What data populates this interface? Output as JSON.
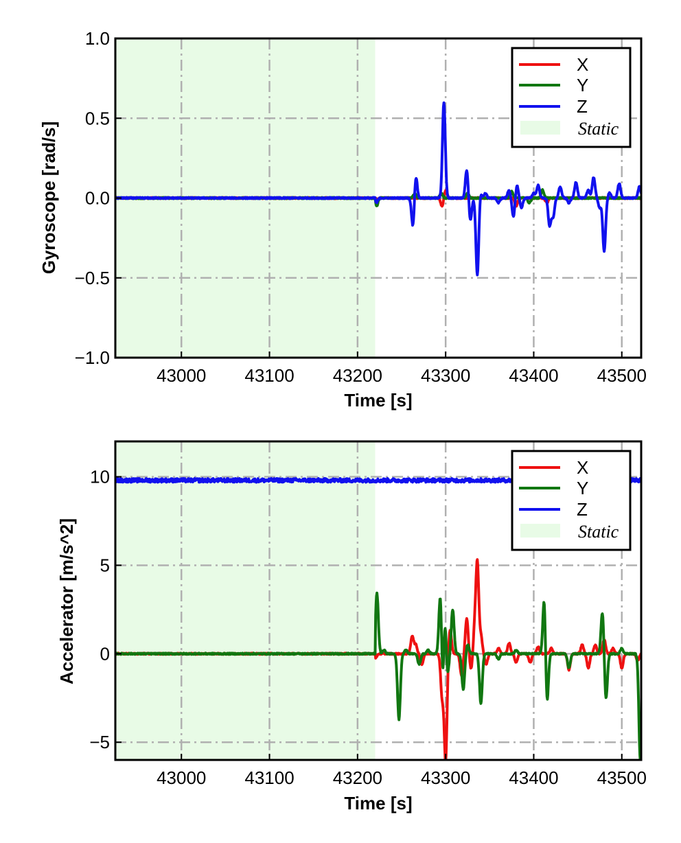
{
  "colors": {
    "X": "#ee1111",
    "Y": "#117711",
    "Z": "#1111ee",
    "static": "#e8fbe6"
  },
  "chart_data": [
    {
      "type": "line",
      "xlabel": "Time [s]",
      "ylabel": "Gyroscope [rad/s]",
      "xlim": [
        42925,
        43522
      ],
      "ylim": [
        -1.0,
        1.0
      ],
      "xticks": [
        43000,
        43100,
        43200,
        43300,
        43400,
        43500
      ],
      "yticks": [
        -1.0,
        -0.5,
        0.0,
        0.5,
        1.0
      ],
      "ytick_labels": [
        "−1.0",
        "−0.5",
        "0.0",
        "0.5",
        "1.0"
      ],
      "grid": true,
      "legend": "top-right",
      "static_region": {
        "label": "Static",
        "x": [
          42925,
          43220
        ]
      },
      "series": [
        {
          "name": "X",
          "color": "#ee1111",
          "baseline": 0.0,
          "events": [
            [
              43220,
              0.04
            ],
            [
              43221,
              -0.04
            ],
            [
              43296,
              -0.05
            ],
            [
              43300,
              0.05
            ],
            [
              43380,
              -0.05
            ],
            [
              43415,
              -0.03
            ]
          ]
        },
        {
          "name": "Y",
          "color": "#117711",
          "baseline": 0.0,
          "events": [
            [
              43219,
              0.08
            ],
            [
              43221,
              -0.08
            ],
            [
              43265,
              0.03
            ],
            [
              43295,
              0.03
            ],
            [
              43325,
              0.03
            ],
            [
              43375,
              0.04
            ],
            [
              43395,
              -0.03
            ],
            [
              43410,
              0.05
            ]
          ]
        },
        {
          "name": "Z",
          "color": "#1111ee",
          "baseline": 0.0,
          "events": [
            [
              43219,
              0.03
            ],
            [
              43221,
              -0.04
            ],
            [
              43263,
              -0.19
            ],
            [
              43266,
              0.15
            ],
            [
              43298,
              0.6
            ],
            [
              43324,
              0.18
            ],
            [
              43328,
              -0.14
            ],
            [
              43336,
              -0.49
            ],
            [
              43339,
              0.04
            ],
            [
              43345,
              0.03
            ],
            [
              43360,
              -0.03
            ],
            [
              43372,
              0.05
            ],
            [
              43377,
              -0.12
            ],
            [
              43381,
              0.08
            ],
            [
              43386,
              -0.06
            ],
            [
              43400,
              0.03
            ],
            [
              43405,
              0.08
            ],
            [
              43418,
              -0.17
            ],
            [
              43422,
              -0.12
            ],
            [
              43430,
              0.07
            ],
            [
              43440,
              -0.03
            ],
            [
              43448,
              0.1
            ],
            [
              43462,
              0.05
            ],
            [
              43468,
              0.13
            ],
            [
              43475,
              -0.06
            ],
            [
              43480,
              -0.33
            ],
            [
              43486,
              0.03
            ],
            [
              43497,
              0.09
            ],
            [
              43520,
              0.07
            ]
          ]
        }
      ]
    },
    {
      "type": "line",
      "xlabel": "Time [s]",
      "ylabel": "Accelerator [m/s^2]",
      "xlim": [
        42925,
        43522
      ],
      "ylim": [
        -6.0,
        12.0
      ],
      "xticks": [
        43000,
        43100,
        43200,
        43300,
        43400,
        43500
      ],
      "yticks": [
        -5,
        0,
        5,
        10
      ],
      "ytick_labels": [
        "−5",
        "0",
        "5",
        "10"
      ],
      "grid": true,
      "legend": "top-right",
      "static_region": {
        "label": "Static",
        "x": [
          42925,
          43220
        ]
      },
      "series": [
        {
          "name": "X",
          "color": "#ee1111",
          "baseline": 0.0,
          "events": [
            [
              43220,
              -0.3
            ],
            [
              43262,
              1.0
            ],
            [
              43266,
              0.5
            ],
            [
              43273,
              -0.6
            ],
            [
              43296,
              -2.4
            ],
            [
              43300,
              -6.0
            ],
            [
              43305,
              1.4
            ],
            [
              43318,
              -1.2
            ],
            [
              43324,
              2.0
            ],
            [
              43329,
              -0.9
            ],
            [
              43333,
              1.5
            ],
            [
              43336,
              5.0
            ],
            [
              43340,
              1.0
            ],
            [
              43346,
              -0.6
            ],
            [
              43360,
              0.3
            ],
            [
              43372,
              0.6
            ],
            [
              43380,
              -0.5
            ],
            [
              43396,
              -0.5
            ],
            [
              43405,
              0.4
            ],
            [
              43420,
              0.3
            ],
            [
              43440,
              -0.9
            ],
            [
              43455,
              0.5
            ],
            [
              43462,
              -0.8
            ],
            [
              43470,
              0.5
            ],
            [
              43480,
              0.8
            ],
            [
              43490,
              0.3
            ],
            [
              43500,
              -0.8
            ],
            [
              43518,
              -0.4
            ]
          ]
        },
        {
          "name": "Y",
          "color": "#117711",
          "baseline": 0.0,
          "events": [
            [
              43222,
              3.4
            ],
            [
              43230,
              0.2
            ],
            [
              43247,
              -3.7
            ],
            [
              43255,
              0.2
            ],
            [
              43270,
              -0.6
            ],
            [
              43280,
              0.2
            ],
            [
              43294,
              3.5
            ],
            [
              43297,
              -2.6
            ],
            [
              43299,
              2.7
            ],
            [
              43302,
              -1.3
            ],
            [
              43308,
              2.5
            ],
            [
              43320,
              -2.0
            ],
            [
              43325,
              0.5
            ],
            [
              43340,
              -2.8
            ],
            [
              43360,
              -0.3
            ],
            [
              43380,
              0.2
            ],
            [
              43412,
              3.3
            ],
            [
              43415,
              -3.0
            ],
            [
              43440,
              -0.8
            ],
            [
              43478,
              2.4
            ],
            [
              43482,
              -2.6
            ],
            [
              43500,
              0.3
            ],
            [
              43521,
              -6.0
            ]
          ]
        },
        {
          "name": "Z",
          "color": "#1111ee",
          "baseline": 9.8,
          "events": []
        }
      ]
    }
  ]
}
